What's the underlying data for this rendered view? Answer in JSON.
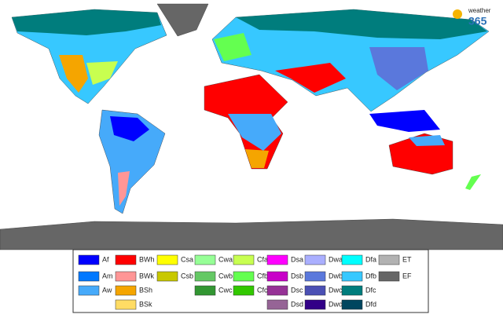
{
  "logo": {
    "brand": "weather",
    "number": "365"
  },
  "legend": {
    "columns": [
      [
        {
          "code": "Af",
          "color": "#0000ff"
        },
        {
          "code": "Am",
          "color": "#0078ff"
        },
        {
          "code": "Aw",
          "color": "#46aafa"
        }
      ],
      [
        {
          "code": "BWh",
          "color": "#ff0000"
        },
        {
          "code": "BWk",
          "color": "#ff9696"
        },
        {
          "code": "BSh",
          "color": "#f5a500"
        },
        {
          "code": "BSk",
          "color": "#ffdc64"
        }
      ],
      [
        {
          "code": "Csa",
          "color": "#ffff00"
        },
        {
          "code": "Csb",
          "color": "#c8c800"
        }
      ],
      [
        {
          "code": "Cwa",
          "color": "#96ff96"
        },
        {
          "code": "Cwb",
          "color": "#64c864"
        },
        {
          "code": "Cwc",
          "color": "#329632"
        }
      ],
      [
        {
          "code": "Cfa",
          "color": "#c8ff50"
        },
        {
          "code": "Cfb",
          "color": "#64ff50"
        },
        {
          "code": "Cfc",
          "color": "#32c800"
        }
      ],
      [
        {
          "code": "Dsa",
          "color": "#ff00ff"
        },
        {
          "code": "Dsb",
          "color": "#c800c8"
        },
        {
          "code": "Dsc",
          "color": "#963296"
        },
        {
          "code": "Dsd",
          "color": "#966496"
        }
      ],
      [
        {
          "code": "Dwa",
          "color": "#aaafff"
        },
        {
          "code": "Dwb",
          "color": "#5a78dc"
        },
        {
          "code": "Dwc",
          "color": "#4b50b4"
        },
        {
          "code": "Dwd",
          "color": "#320087"
        }
      ],
      [
        {
          "code": "Dfa",
          "color": "#00ffff"
        },
        {
          "code": "Dfb",
          "color": "#37c8ff"
        },
        {
          "code": "Dfc",
          "color": "#007d7d"
        },
        {
          "code": "Dfd",
          "color": "#00465f"
        }
      ],
      [
        {
          "code": "ET",
          "color": "#b2b2b2"
        },
        {
          "code": "EF",
          "color": "#666666"
        }
      ]
    ]
  }
}
